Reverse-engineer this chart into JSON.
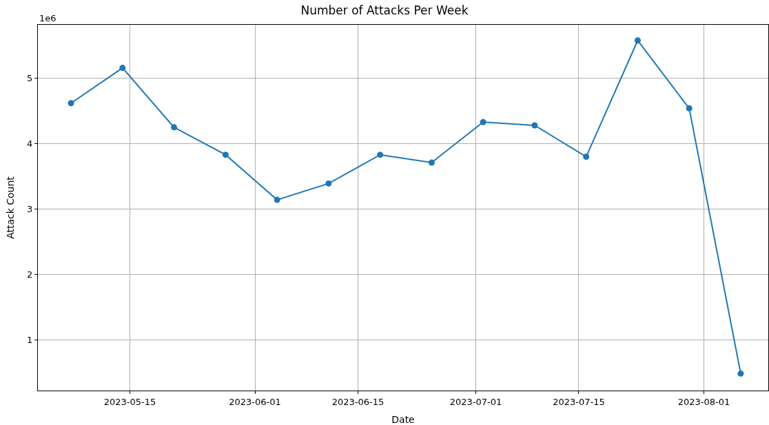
{
  "chart_data": {
    "type": "line",
    "title": "Number of Attacks Per Week",
    "xlabel": "Date",
    "ylabel": "Attack Count",
    "annotations": [
      "1e6"
    ],
    "x": [
      "2023-05-07",
      "2023-05-14",
      "2023-05-21",
      "2023-05-28",
      "2023-06-04",
      "2023-06-11",
      "2023-06-18",
      "2023-06-25",
      "2023-07-02",
      "2023-07-09",
      "2023-07-16",
      "2023-07-23",
      "2023-07-30",
      "2023-08-06"
    ],
    "series": [
      {
        "color": "#1f77b4",
        "values": [
          4.62,
          5.16,
          4.25,
          3.83,
          3.14,
          3.39,
          3.83,
          3.71,
          4.33,
          4.28,
          3.8,
          5.58,
          4.54,
          0.48
        ]
      }
    ],
    "xlim": [
      "2023-05-02T12:00",
      "2023-08-09T18:00"
    ],
    "xticks": [
      {
        "value": "2023-05-15",
        "label": "2023-05-15"
      },
      {
        "value": "2023-06-01",
        "label": "2023-06-01"
      },
      {
        "value": "2023-06-15",
        "label": "2023-06-15"
      },
      {
        "value": "2023-07-01",
        "label": "2023-07-01"
      },
      {
        "value": "2023-07-15",
        "label": "2023-07-15"
      },
      {
        "value": "2023-08-01",
        "label": "2023-08-01"
      }
    ],
    "ylim": [
      0.22,
      5.82
    ],
    "yticks": [
      1,
      2,
      3,
      4,
      5
    ],
    "grid": true,
    "marker": "circle",
    "line_style": "solid",
    "legend": false
  }
}
